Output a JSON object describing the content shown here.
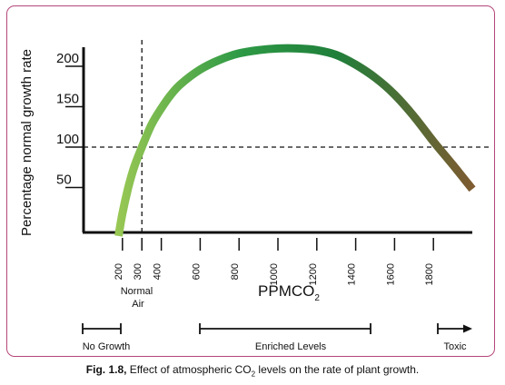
{
  "chart_data": {
    "type": "line",
    "ylabel": "Percentage normal growth rate",
    "xlabel_main": "PPMCO",
    "xlabel_sub": "2",
    "x_ticks": [
      200,
      300,
      400,
      600,
      800,
      1000,
      1200,
      1400,
      1600,
      1800
    ],
    "y_ticks": [
      50,
      100,
      150,
      200
    ],
    "xlim": [
      0,
      2000
    ],
    "ylim": [
      -10,
      230
    ],
    "series": [
      {
        "x": [
          180,
          200,
          230,
          260,
          300,
          350,
          400,
          450,
          500,
          600,
          700,
          800,
          900,
          1000,
          1100,
          1200,
          1300,
          1400,
          1500,
          1600,
          1700,
          1800,
          1900,
          2000
        ],
        "y": [
          -10,
          18,
          50,
          75,
          100,
          128,
          148,
          165,
          178,
          196,
          208,
          216,
          220,
          222,
          222,
          220,
          214,
          202,
          186,
          165,
          138,
          107,
          78,
          48
        ]
      }
    ],
    "reference_lines": {
      "x": 300,
      "y": 100
    },
    "gradient": [
      "#9cc955",
      "#2e9a45",
      "#1f7f3a",
      "#7e5b31"
    ]
  },
  "annotations": {
    "normal_air": [
      "Normal",
      "Air"
    ],
    "no_growth": "No Growth",
    "enriched": "Enriched Levels",
    "toxic": "Toxic"
  },
  "caption": {
    "prefix": "Fig. 1.8,",
    "text_a": " Effect of atmospheric CO",
    "sub": "2",
    "text_b": " levels on the rate of plant growth."
  },
  "colors": {
    "frame": "#b5477a",
    "axis": "#111111"
  }
}
